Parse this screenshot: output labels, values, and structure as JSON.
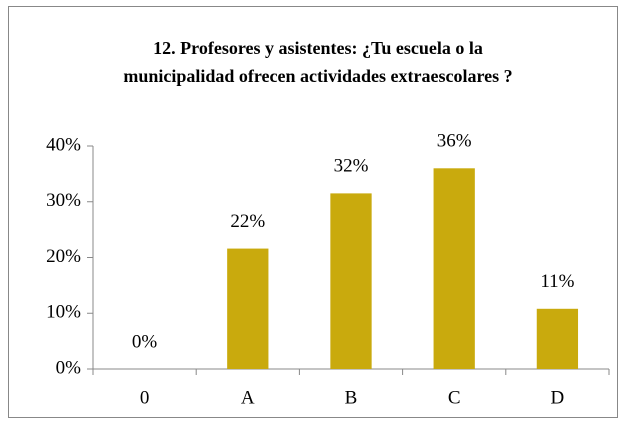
{
  "chart_data": {
    "type": "bar",
    "title": "12. Profesores y asistentes: ¿Tu escuela o la municipalidad ofrecen actividades extraescolares ?",
    "categories": [
      "0",
      "A",
      "B",
      "C",
      "D"
    ],
    "values": [
      0,
      21.6,
      31.5,
      36,
      10.8
    ],
    "value_labels": [
      "0%",
      "22%",
      "32%",
      "36%",
      "11%"
    ],
    "color": "#c9aa0d",
    "ylim": [
      0,
      40
    ],
    "yticks": [
      {
        "value": 0,
        "label": "0%"
      },
      {
        "value": 10,
        "label": "10%"
      },
      {
        "value": 20,
        "label": "20%"
      },
      {
        "value": 30,
        "label": "30%"
      },
      {
        "value": 40,
        "label": "40%"
      }
    ],
    "grid": false
  }
}
